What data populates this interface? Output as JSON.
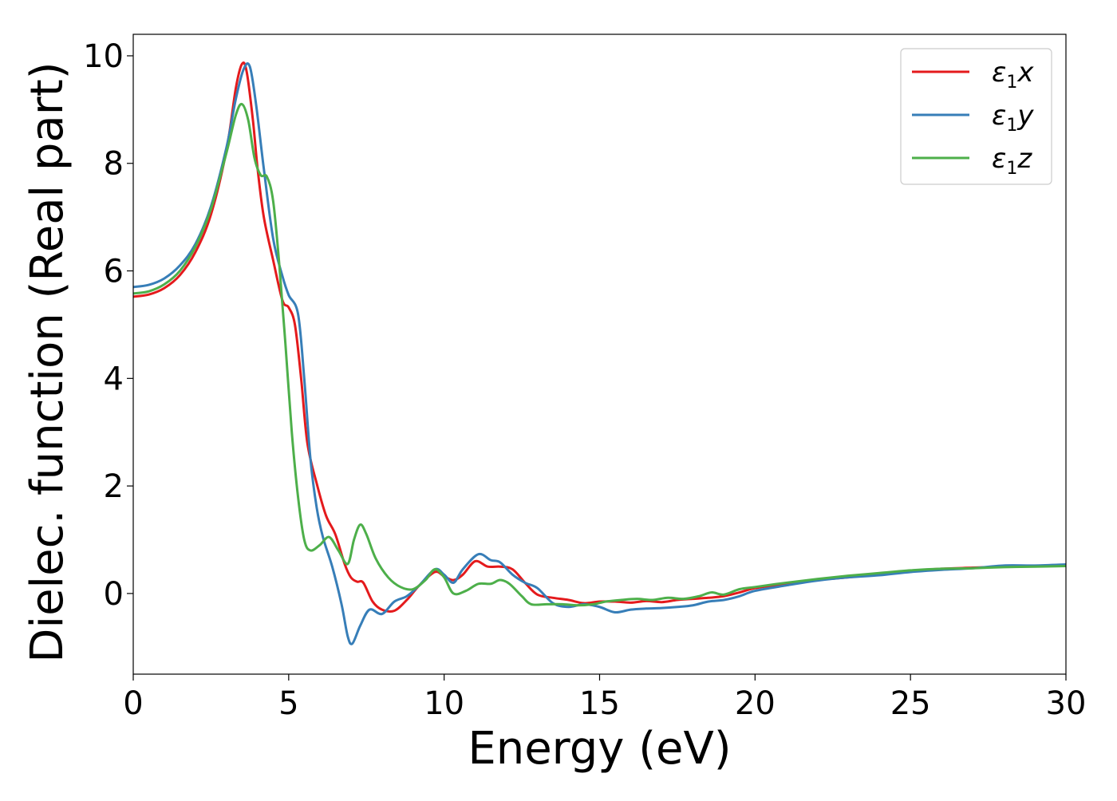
{
  "chart_data": {
    "type": "line",
    "xlabel": "Energy (eV)",
    "ylabel": "Dielec. function (Real part)",
    "xlim": [
      0,
      30
    ],
    "ylim": [
      -1.5,
      10.4
    ],
    "x_ticks": [
      0,
      5,
      10,
      15,
      20,
      25,
      30
    ],
    "y_ticks": [
      0,
      2,
      4,
      6,
      8,
      10
    ],
    "grid": false,
    "legend_position": "top-right",
    "series": [
      {
        "name": "ε1x",
        "name_base": "ε",
        "name_sub": "1",
        "name_var": "x",
        "color": "#e41a1c",
        "points": [
          [
            0,
            5.52
          ],
          [
            0.5,
            5.56
          ],
          [
            1.0,
            5.68
          ],
          [
            1.5,
            5.92
          ],
          [
            2.0,
            6.35
          ],
          [
            2.5,
            7.05
          ],
          [
            3.0,
            8.25
          ],
          [
            3.3,
            9.4
          ],
          [
            3.5,
            9.85
          ],
          [
            3.65,
            9.7
          ],
          [
            3.85,
            8.8
          ],
          [
            4.0,
            7.9
          ],
          [
            4.2,
            7.0
          ],
          [
            4.5,
            6.2
          ],
          [
            4.8,
            5.45
          ],
          [
            5.0,
            5.32
          ],
          [
            5.2,
            5.0
          ],
          [
            5.4,
            4.0
          ],
          [
            5.6,
            2.8
          ],
          [
            5.9,
            2.05
          ],
          [
            6.2,
            1.45
          ],
          [
            6.5,
            1.1
          ],
          [
            6.8,
            0.55
          ],
          [
            7.0,
            0.3
          ],
          [
            7.2,
            0.22
          ],
          [
            7.4,
            0.2
          ],
          [
            7.7,
            -0.15
          ],
          [
            8.0,
            -0.3
          ],
          [
            8.4,
            -0.32
          ],
          [
            8.8,
            -0.12
          ],
          [
            9.2,
            0.15
          ],
          [
            9.7,
            0.4
          ],
          [
            10.0,
            0.32
          ],
          [
            10.3,
            0.25
          ],
          [
            10.6,
            0.35
          ],
          [
            11.0,
            0.6
          ],
          [
            11.4,
            0.5
          ],
          [
            11.8,
            0.5
          ],
          [
            12.2,
            0.45
          ],
          [
            12.6,
            0.2
          ],
          [
            13.0,
            -0.02
          ],
          [
            13.5,
            -0.08
          ],
          [
            14.0,
            -0.12
          ],
          [
            14.5,
            -0.18
          ],
          [
            15.0,
            -0.15
          ],
          [
            15.5,
            -0.15
          ],
          [
            16.0,
            -0.17
          ],
          [
            16.5,
            -0.14
          ],
          [
            17.0,
            -0.16
          ],
          [
            17.5,
            -0.12
          ],
          [
            18.0,
            -0.1
          ],
          [
            18.5,
            -0.08
          ],
          [
            19.0,
            -0.05
          ],
          [
            19.5,
            0.02
          ],
          [
            20.0,
            0.1
          ],
          [
            21.0,
            0.18
          ],
          [
            22.0,
            0.25
          ],
          [
            23.0,
            0.3
          ],
          [
            24.0,
            0.36
          ],
          [
            25.0,
            0.42
          ],
          [
            26.0,
            0.46
          ],
          [
            27.0,
            0.48
          ],
          [
            28.0,
            0.5
          ],
          [
            29.0,
            0.51
          ],
          [
            30.0,
            0.52
          ]
        ]
      },
      {
        "name": "ε1y",
        "name_base": "ε",
        "name_sub": "1",
        "name_var": "y",
        "color": "#377eb8",
        "points": [
          [
            0,
            5.7
          ],
          [
            0.5,
            5.74
          ],
          [
            1.0,
            5.86
          ],
          [
            1.5,
            6.1
          ],
          [
            2.0,
            6.5
          ],
          [
            2.5,
            7.2
          ],
          [
            3.0,
            8.3
          ],
          [
            3.3,
            9.2
          ],
          [
            3.55,
            9.75
          ],
          [
            3.75,
            9.8
          ],
          [
            3.95,
            9.1
          ],
          [
            4.2,
            7.9
          ],
          [
            4.5,
            6.6
          ],
          [
            4.8,
            5.9
          ],
          [
            5.0,
            5.55
          ],
          [
            5.3,
            5.2
          ],
          [
            5.5,
            4.0
          ],
          [
            5.7,
            2.5
          ],
          [
            5.9,
            1.6
          ],
          [
            6.1,
            1.05
          ],
          [
            6.4,
            0.5
          ],
          [
            6.7,
            -0.2
          ],
          [
            6.9,
            -0.8
          ],
          [
            7.05,
            -0.93
          ],
          [
            7.3,
            -0.6
          ],
          [
            7.6,
            -0.3
          ],
          [
            8.0,
            -0.38
          ],
          [
            8.4,
            -0.15
          ],
          [
            8.8,
            -0.05
          ],
          [
            9.2,
            0.15
          ],
          [
            9.7,
            0.45
          ],
          [
            10.0,
            0.35
          ],
          [
            10.3,
            0.2
          ],
          [
            10.6,
            0.45
          ],
          [
            11.1,
            0.73
          ],
          [
            11.5,
            0.62
          ],
          [
            11.8,
            0.58
          ],
          [
            12.2,
            0.35
          ],
          [
            12.6,
            0.2
          ],
          [
            13.0,
            0.1
          ],
          [
            13.5,
            -0.18
          ],
          [
            14.0,
            -0.25
          ],
          [
            14.5,
            -0.2
          ],
          [
            15.0,
            -0.25
          ],
          [
            15.5,
            -0.35
          ],
          [
            16.0,
            -0.3
          ],
          [
            16.5,
            -0.28
          ],
          [
            17.0,
            -0.27
          ],
          [
            17.5,
            -0.25
          ],
          [
            18.0,
            -0.22
          ],
          [
            18.5,
            -0.15
          ],
          [
            19.0,
            -0.12
          ],
          [
            19.5,
            -0.05
          ],
          [
            20.0,
            0.05
          ],
          [
            21.0,
            0.15
          ],
          [
            22.0,
            0.24
          ],
          [
            23.0,
            0.3
          ],
          [
            24.0,
            0.34
          ],
          [
            25.0,
            0.4
          ],
          [
            26.0,
            0.44
          ],
          [
            27.0,
            0.47
          ],
          [
            28.0,
            0.52
          ],
          [
            29.0,
            0.52
          ],
          [
            30.0,
            0.54
          ]
        ]
      },
      {
        "name": "ε1z",
        "name_base": "ε",
        "name_sub": "1",
        "name_var": "z",
        "color": "#4daf4a",
        "points": [
          [
            0,
            5.58
          ],
          [
            0.5,
            5.62
          ],
          [
            1.0,
            5.75
          ],
          [
            1.5,
            6.0
          ],
          [
            2.0,
            6.45
          ],
          [
            2.5,
            7.15
          ],
          [
            3.0,
            8.2
          ],
          [
            3.3,
            8.9
          ],
          [
            3.5,
            9.1
          ],
          [
            3.7,
            8.8
          ],
          [
            3.9,
            8.1
          ],
          [
            4.1,
            7.78
          ],
          [
            4.3,
            7.75
          ],
          [
            4.5,
            7.3
          ],
          [
            4.7,
            6.1
          ],
          [
            4.9,
            4.6
          ],
          [
            5.1,
            3.0
          ],
          [
            5.3,
            1.8
          ],
          [
            5.5,
            1.0
          ],
          [
            5.7,
            0.8
          ],
          [
            6.0,
            0.9
          ],
          [
            6.3,
            1.05
          ],
          [
            6.6,
            0.8
          ],
          [
            6.9,
            0.55
          ],
          [
            7.1,
            1.0
          ],
          [
            7.3,
            1.28
          ],
          [
            7.5,
            1.1
          ],
          [
            7.8,
            0.65
          ],
          [
            8.2,
            0.3
          ],
          [
            8.6,
            0.12
          ],
          [
            9.0,
            0.08
          ],
          [
            9.4,
            0.25
          ],
          [
            9.7,
            0.45
          ],
          [
            10.0,
            0.3
          ],
          [
            10.3,
            0.0
          ],
          [
            10.7,
            0.05
          ],
          [
            11.1,
            0.18
          ],
          [
            11.5,
            0.18
          ],
          [
            11.8,
            0.25
          ],
          [
            12.1,
            0.18
          ],
          [
            12.5,
            -0.05
          ],
          [
            12.8,
            -0.2
          ],
          [
            13.3,
            -0.2
          ],
          [
            13.8,
            -0.2
          ],
          [
            14.3,
            -0.22
          ],
          [
            14.8,
            -0.2
          ],
          [
            15.2,
            -0.15
          ],
          [
            15.7,
            -0.12
          ],
          [
            16.2,
            -0.1
          ],
          [
            16.7,
            -0.12
          ],
          [
            17.2,
            -0.08
          ],
          [
            17.7,
            -0.1
          ],
          [
            18.2,
            -0.05
          ],
          [
            18.6,
            0.02
          ],
          [
            19.0,
            -0.02
          ],
          [
            19.5,
            0.08
          ],
          [
            20.0,
            0.12
          ],
          [
            21.0,
            0.2
          ],
          [
            22.0,
            0.27
          ],
          [
            23.0,
            0.33
          ],
          [
            24.0,
            0.38
          ],
          [
            25.0,
            0.43
          ],
          [
            26.0,
            0.46
          ],
          [
            27.0,
            0.47
          ],
          [
            28.0,
            0.49
          ],
          [
            29.0,
            0.5
          ],
          [
            30.0,
            0.51
          ]
        ]
      }
    ]
  }
}
